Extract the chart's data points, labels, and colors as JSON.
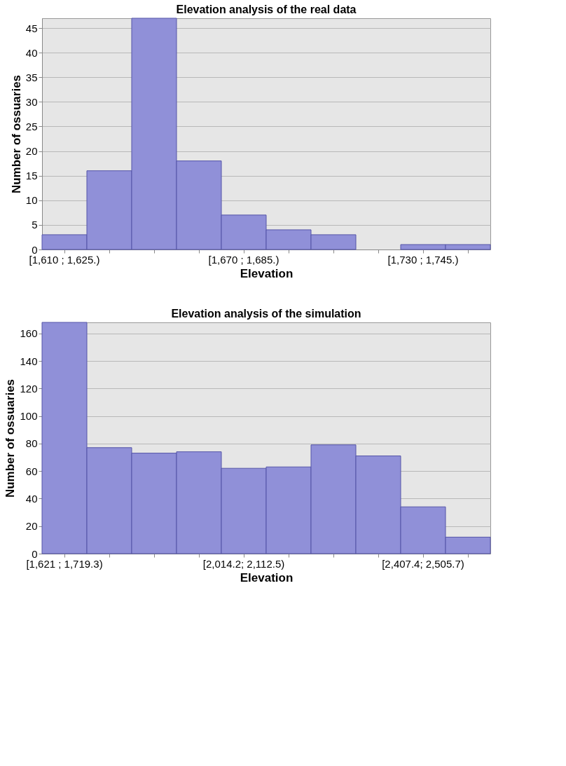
{
  "chart_data": [
    {
      "type": "bar",
      "title": "Elevation analysis of the real data",
      "xlabel": "Elevation",
      "ylabel": "Number of ossuaries",
      "categories": [
        "[1,610 ; 1,625.)",
        null,
        null,
        null,
        "[1,670 ; 1,685.)",
        null,
        null,
        null,
        "[1,730 ; 1,745.)",
        null
      ],
      "values": [
        3,
        16,
        47,
        18,
        7,
        4,
        3,
        0,
        1,
        1
      ],
      "color": "#9090d8",
      "ylim": [
        0,
        47
      ],
      "yticks": [
        0,
        5,
        10,
        15,
        20,
        25,
        30,
        35,
        40,
        45
      ],
      "grid": "y"
    },
    {
      "type": "bar",
      "title": "Elevation analysis of the simulation",
      "xlabel": "Elevation",
      "ylabel": "Number of ossuaries",
      "categories": [
        "[1,621 ; 1,719.3)",
        null,
        null,
        null,
        "[2,014.2; 2,112.5)",
        null,
        null,
        null,
        "[2,407.4; 2,505.7)",
        null
      ],
      "values": [
        168,
        77,
        73,
        74,
        62,
        63,
        79,
        71,
        34,
        12
      ],
      "color": "#9090d8",
      "ylim": [
        0,
        168
      ],
      "yticks": [
        0,
        20,
        40,
        60,
        80,
        100,
        120,
        140,
        160
      ],
      "grid": "y"
    }
  ]
}
